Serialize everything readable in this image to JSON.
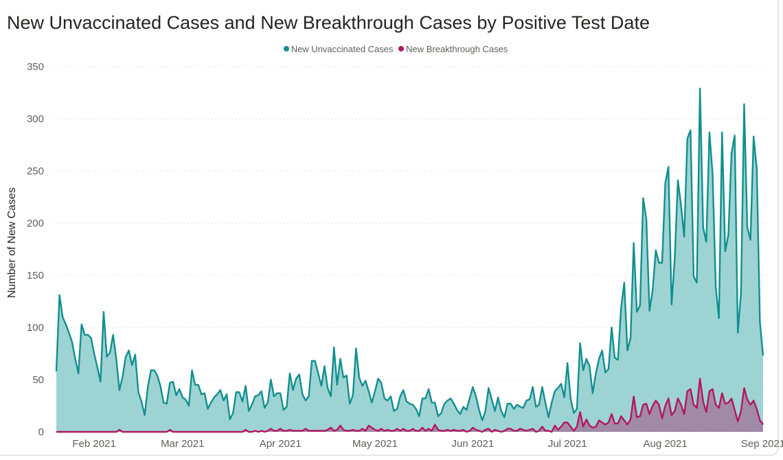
{
  "chart_data": {
    "type": "area",
    "title": "New Unvaccinated Cases and New Breakthrough Cases by Positive Test Date",
    "xlabel": "",
    "ylabel": "Number of New Cases",
    "ylim": [
      0,
      350
    ],
    "yticks": [
      0,
      50,
      100,
      150,
      200,
      250,
      300,
      350
    ],
    "xtick_labels": [
      "Feb 2021",
      "Mar 2021",
      "Apr 2021",
      "May 2021",
      "Jun 2021",
      "Jul 2021",
      "Aug 2021",
      "Sep 2021"
    ],
    "grid": true,
    "legend_position": "top-center",
    "dates": [
      "2021-01-20",
      "2021-01-21",
      "2021-01-22",
      "2021-01-23",
      "2021-01-24",
      "2021-01-25",
      "2021-01-26",
      "2021-01-27",
      "2021-01-28",
      "2021-01-29",
      "2021-01-30",
      "2021-01-31",
      "2021-02-01",
      "2021-02-02",
      "2021-02-03",
      "2021-02-04",
      "2021-02-05",
      "2021-02-06",
      "2021-02-07",
      "2021-02-08",
      "2021-02-09",
      "2021-02-10",
      "2021-02-11",
      "2021-02-12",
      "2021-02-13",
      "2021-02-14",
      "2021-02-15",
      "2021-02-16",
      "2021-02-17",
      "2021-02-18",
      "2021-02-19",
      "2021-02-20",
      "2021-02-21",
      "2021-02-22",
      "2021-02-23",
      "2021-02-24",
      "2021-02-25",
      "2021-02-26",
      "2021-02-27",
      "2021-02-28",
      "2021-03-01",
      "2021-03-02",
      "2021-03-03",
      "2021-03-04",
      "2021-03-05",
      "2021-03-06",
      "2021-03-07",
      "2021-03-08",
      "2021-03-09",
      "2021-03-10",
      "2021-03-11",
      "2021-03-12",
      "2021-03-13",
      "2021-03-14",
      "2021-03-15",
      "2021-03-16",
      "2021-03-17",
      "2021-03-18",
      "2021-03-19",
      "2021-03-20",
      "2021-03-21",
      "2021-03-22",
      "2021-03-23",
      "2021-03-24",
      "2021-03-25",
      "2021-03-26",
      "2021-03-27",
      "2021-03-28",
      "2021-03-29",
      "2021-03-30",
      "2021-03-31",
      "2021-04-01",
      "2021-04-02",
      "2021-04-03",
      "2021-04-04",
      "2021-04-05",
      "2021-04-06",
      "2021-04-07",
      "2021-04-08",
      "2021-04-09",
      "2021-04-10",
      "2021-04-11",
      "2021-04-12",
      "2021-04-13",
      "2021-04-14",
      "2021-04-15",
      "2021-04-16",
      "2021-04-17",
      "2021-04-18",
      "2021-04-19",
      "2021-04-20",
      "2021-04-21",
      "2021-04-22",
      "2021-04-23",
      "2021-04-24",
      "2021-04-25",
      "2021-04-26",
      "2021-04-27",
      "2021-04-28",
      "2021-04-29",
      "2021-04-30",
      "2021-05-01",
      "2021-05-02",
      "2021-05-03",
      "2021-05-04",
      "2021-05-05",
      "2021-05-06",
      "2021-05-07",
      "2021-05-08",
      "2021-05-09",
      "2021-05-10",
      "2021-05-11",
      "2021-05-12",
      "2021-05-13",
      "2021-05-14",
      "2021-05-15",
      "2021-05-16",
      "2021-05-17",
      "2021-05-18",
      "2021-05-19",
      "2021-05-20",
      "2021-05-21",
      "2021-05-22",
      "2021-05-23",
      "2021-05-24",
      "2021-05-25",
      "2021-05-26",
      "2021-05-27",
      "2021-05-28",
      "2021-05-29",
      "2021-05-30",
      "2021-05-31",
      "2021-06-01",
      "2021-06-02",
      "2021-06-03",
      "2021-06-04",
      "2021-06-05",
      "2021-06-06",
      "2021-06-07",
      "2021-06-08",
      "2021-06-09",
      "2021-06-10",
      "2021-06-11",
      "2021-06-12",
      "2021-06-13",
      "2021-06-14",
      "2021-06-15",
      "2021-06-16",
      "2021-06-17",
      "2021-06-18",
      "2021-06-19",
      "2021-06-20",
      "2021-06-21",
      "2021-06-22",
      "2021-06-23",
      "2021-06-24",
      "2021-06-25",
      "2021-06-26",
      "2021-06-27",
      "2021-06-28",
      "2021-06-29",
      "2021-06-30",
      "2021-07-01",
      "2021-07-02",
      "2021-07-03",
      "2021-07-04",
      "2021-07-05",
      "2021-07-06",
      "2021-07-07",
      "2021-07-08",
      "2021-07-09",
      "2021-07-10",
      "2021-07-11",
      "2021-07-12",
      "2021-07-13",
      "2021-07-14",
      "2021-07-15",
      "2021-07-16",
      "2021-07-17",
      "2021-07-18",
      "2021-07-19",
      "2021-07-20",
      "2021-07-21",
      "2021-07-22",
      "2021-07-23",
      "2021-07-24",
      "2021-07-25",
      "2021-07-26",
      "2021-07-27",
      "2021-07-28",
      "2021-07-29",
      "2021-07-30",
      "2021-07-31",
      "2021-08-01",
      "2021-08-02",
      "2021-08-03",
      "2021-08-04",
      "2021-08-05",
      "2021-08-06",
      "2021-08-07",
      "2021-08-08",
      "2021-08-09",
      "2021-08-10",
      "2021-08-11",
      "2021-08-12",
      "2021-08-13",
      "2021-08-14",
      "2021-08-15",
      "2021-08-16",
      "2021-08-17",
      "2021-08-18",
      "2021-08-19",
      "2021-08-20",
      "2021-08-21",
      "2021-08-22",
      "2021-08-23",
      "2021-08-24",
      "2021-08-25",
      "2021-08-26",
      "2021-08-27",
      "2021-08-28",
      "2021-08-29",
      "2021-08-30",
      "2021-08-31",
      "2021-09-01"
    ],
    "series": [
      {
        "name": "New Unvaccinated Cases",
        "color": "#118f8f",
        "fill": "#9ed3d4",
        "values": [
          58,
          131,
          110,
          103,
          95,
          86,
          70,
          56,
          103,
          93,
          93,
          90,
          75,
          62,
          48,
          115,
          72,
          76,
          93,
          70,
          40,
          53,
          72,
          78,
          64,
          74,
          38,
          29,
          16,
          43,
          59,
          59,
          54,
          44,
          28,
          27,
          47,
          48,
          35,
          41,
          33,
          31,
          25,
          59,
          45,
          45,
          36,
          37,
          22,
          28,
          33,
          36,
          40,
          30,
          36,
          12,
          18,
          38,
          38,
          29,
          44,
          20,
          26,
          34,
          35,
          39,
          23,
          28,
          50,
          34,
          37,
          37,
          21,
          24,
          56,
          40,
          51,
          55,
          36,
          30,
          34,
          68,
          68,
          56,
          44,
          63,
          42,
          34,
          81,
          45,
          70,
          52,
          54,
          27,
          35,
          80,
          52,
          44,
          49,
          39,
          28,
          39,
          51,
          47,
          32,
          30,
          34,
          20,
          22,
          34,
          40,
          29,
          27,
          26,
          22,
          15,
          32,
          32,
          41,
          28,
          28,
          15,
          18,
          27,
          30,
          32,
          27,
          21,
          17,
          24,
          21,
          32,
          43,
          34,
          21,
          11,
          20,
          42,
          31,
          20,
          33,
          20,
          14,
          27,
          27,
          22,
          26,
          24,
          23,
          30,
          31,
          43,
          24,
          26,
          43,
          28,
          14,
          28,
          39,
          42,
          46,
          33,
          66,
          32,
          18,
          22,
          85,
          59,
          70,
          63,
          37,
          56,
          70,
          78,
          57,
          60,
          100,
          71,
          69,
          119,
          143,
          78,
          90,
          181,
          115,
          121,
          224,
          204,
          116,
          136,
          174,
          162,
          162,
          238,
          254,
          122,
          166,
          241,
          217,
          187,
          281,
          289,
          149,
          143,
          329,
          196,
          182,
          287,
          247,
          139,
          109,
          287,
          173,
          189,
          267,
          284,
          95,
          133,
          314,
          196,
          184,
          283,
          252,
          105,
          73
        ]
      },
      {
        "name": "New Breakthrough Cases",
        "color": "#b3175f",
        "fill": "#a08aa5",
        "values": [
          0,
          0,
          0,
          0,
          0,
          0,
          0,
          0,
          0,
          0,
          0,
          0,
          0,
          0,
          0,
          0,
          0,
          0,
          0,
          0,
          2,
          0,
          0,
          0,
          0,
          0,
          0,
          0,
          0,
          0,
          0,
          0,
          0,
          0,
          0,
          0,
          2,
          0,
          0,
          0,
          0,
          0,
          0,
          0,
          0,
          0,
          0,
          0,
          0,
          0,
          0,
          0,
          0,
          0,
          0,
          0,
          0,
          0,
          0,
          0,
          2,
          0,
          0,
          1,
          0,
          1,
          0,
          1,
          3,
          1,
          1,
          3,
          1,
          1,
          2,
          1,
          1,
          1,
          1,
          3,
          1,
          1,
          1,
          1,
          1,
          1,
          2,
          4,
          1,
          2,
          6,
          2,
          1,
          1,
          2,
          1,
          1,
          3,
          1,
          6,
          4,
          2,
          1,
          3,
          1,
          2,
          1,
          1,
          3,
          1,
          3,
          1,
          1,
          3,
          1,
          1,
          4,
          1,
          3,
          1,
          7,
          2,
          1,
          1,
          2,
          1,
          2,
          1,
          1,
          2,
          0,
          1,
          4,
          2,
          1,
          0,
          2,
          3,
          0,
          2,
          1,
          0,
          1,
          3,
          3,
          1,
          1,
          3,
          2,
          1,
          2,
          3,
          0,
          1,
          5,
          1,
          1,
          0,
          6,
          2,
          5,
          9,
          9,
          5,
          1,
          5,
          19,
          5,
          12,
          6,
          4,
          5,
          11,
          9,
          7,
          9,
          17,
          8,
          8,
          15,
          11,
          7,
          12,
          34,
          14,
          15,
          26,
          27,
          17,
          25,
          30,
          26,
          13,
          25,
          32,
          16,
          20,
          32,
          26,
          17,
          39,
          41,
          26,
          23,
          51,
          29,
          19,
          39,
          41,
          26,
          23,
          37,
          27,
          28,
          32,
          21,
          10,
          20,
          42,
          31,
          26,
          30,
          22,
          11,
          7
        ]
      }
    ]
  }
}
